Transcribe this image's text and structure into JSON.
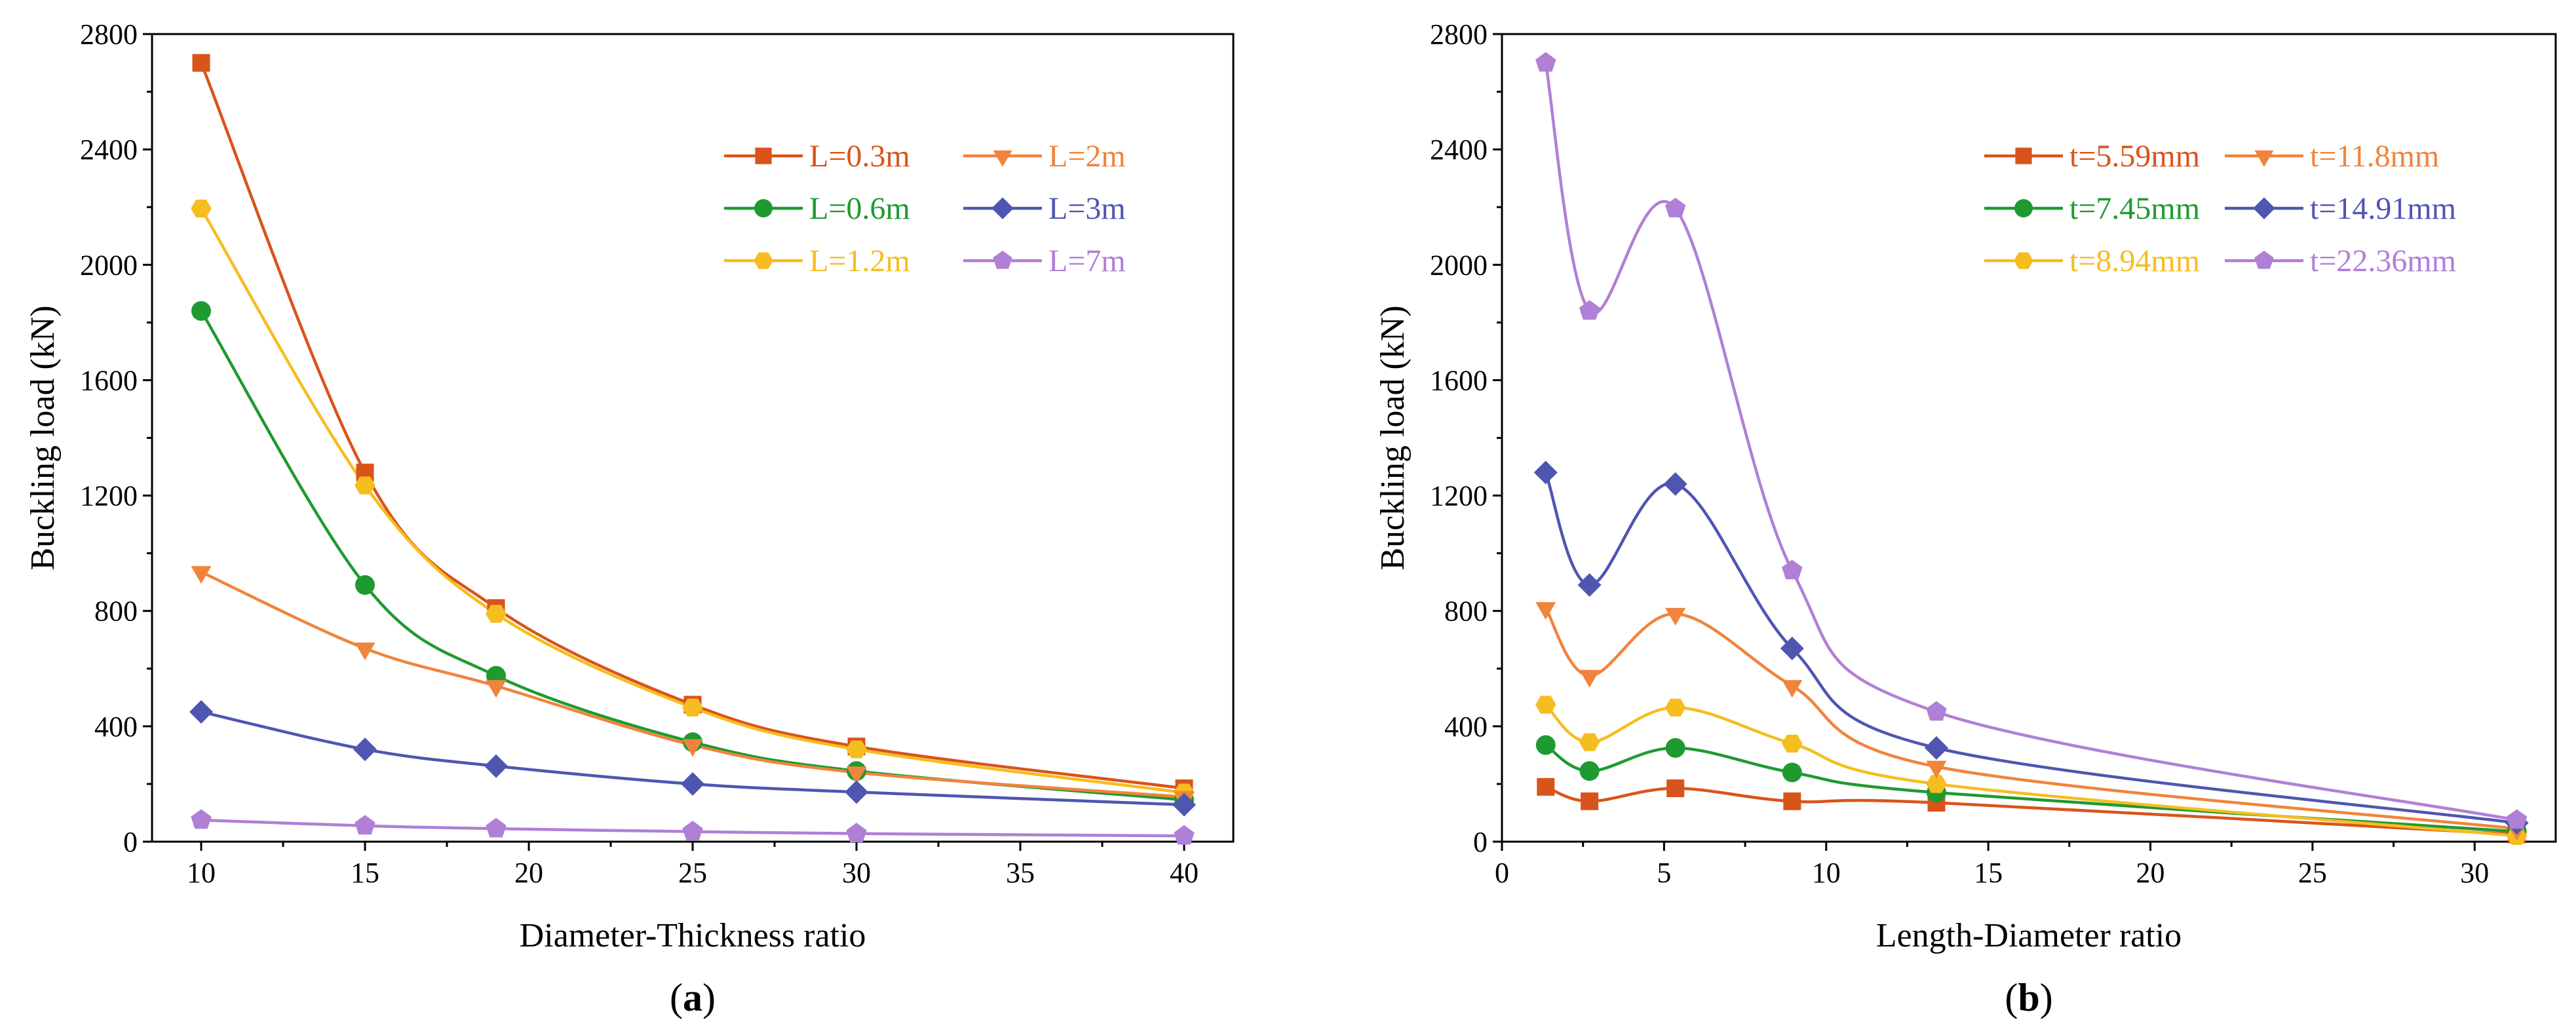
{
  "chart_data": [
    {
      "type": "line",
      "panel_label": "(a)",
      "xlabel": "Diameter-Thickness ratio",
      "ylabel": "Buckling load (kN)",
      "xlim": [
        8.5,
        41.5
      ],
      "ylim": [
        0,
        2800
      ],
      "xticks": [
        10,
        15,
        20,
        25,
        30,
        35,
        40
      ],
      "yticks": [
        0,
        400,
        800,
        1200,
        1600,
        2000,
        2400,
        2800
      ],
      "legend_position": "top-right",
      "legend_columns": 2,
      "series": [
        {
          "name": "L=0.3m",
          "color": "#d9541a",
          "marker": "square",
          "x": [
            10,
            15,
            19,
            25,
            30,
            40
          ],
          "y": [
            2700,
            1280,
            810,
            475,
            330,
            185
          ]
        },
        {
          "name": "L=0.6m",
          "color": "#1f9a31",
          "marker": "circle",
          "x": [
            10,
            15,
            19,
            25,
            30,
            40
          ],
          "y": [
            1840,
            890,
            575,
            345,
            245,
            145
          ]
        },
        {
          "name": "L=1.2m",
          "color": "#f6bd20",
          "marker": "hexagon",
          "x": [
            10,
            15,
            19,
            25,
            30,
            40
          ],
          "y": [
            2195,
            1235,
            790,
            465,
            320,
            170
          ]
        },
        {
          "name": "L=2m",
          "color": "#f0843c",
          "marker": "triangle-down",
          "x": [
            10,
            15,
            19,
            25,
            30,
            40
          ],
          "y": [
            935,
            670,
            540,
            335,
            240,
            155
          ]
        },
        {
          "name": "L=3m",
          "color": "#4f56b0",
          "marker": "diamond",
          "x": [
            10,
            15,
            19,
            25,
            30,
            40
          ],
          "y": [
            450,
            320,
            262,
            200,
            172,
            128
          ]
        },
        {
          "name": "L=7m",
          "color": "#b07fd6",
          "marker": "pentagon",
          "x": [
            10,
            15,
            19,
            25,
            30,
            40
          ],
          "y": [
            75,
            55,
            45,
            35,
            28,
            20
          ]
        }
      ]
    },
    {
      "type": "line",
      "panel_label": "(b)",
      "xlabel": "Length-Diameter ratio",
      "ylabel": "Buckling load (kN)",
      "xlim": [
        0,
        32.5
      ],
      "ylim": [
        0,
        2800
      ],
      "xticks": [
        0,
        5,
        10,
        15,
        20,
        25,
        30
      ],
      "yticks": [
        0,
        400,
        800,
        1200,
        1600,
        2000,
        2400,
        2800
      ],
      "legend_position": "top-right",
      "legend_columns": 2,
      "series": [
        {
          "name": "t=5.59mm",
          "color": "#d9541a",
          "marker": "square",
          "x": [
            1.35,
            2.7,
            5.35,
            8.95,
            13.4,
            31.3
          ],
          "y": [
            190,
            140,
            185,
            140,
            135,
            25
          ]
        },
        {
          "name": "t=7.45mm",
          "color": "#1f9a31",
          "marker": "circle",
          "x": [
            1.35,
            2.7,
            5.35,
            8.95,
            13.4,
            31.3
          ],
          "y": [
            335,
            245,
            325,
            240,
            170,
            35
          ]
        },
        {
          "name": "t=8.94mm",
          "color": "#f6bd20",
          "marker": "hexagon",
          "x": [
            1.35,
            2.7,
            5.35,
            8.95,
            13.4,
            31.3
          ],
          "y": [
            475,
            345,
            465,
            340,
            200,
            20
          ]
        },
        {
          "name": "t=11.8mm",
          "color": "#f0843c",
          "marker": "triangle-down",
          "x": [
            1.35,
            2.7,
            5.35,
            8.95,
            13.4,
            31.3
          ],
          "y": [
            810,
            575,
            790,
            540,
            260,
            45
          ]
        },
        {
          "name": "t=14.91mm",
          "color": "#4f56b0",
          "marker": "diamond",
          "x": [
            1.35,
            2.7,
            5.35,
            8.95,
            13.4,
            31.3
          ],
          "y": [
            1280,
            890,
            1240,
            670,
            325,
            65
          ]
        },
        {
          "name": "t=22.36mm",
          "color": "#b07fd6",
          "marker": "pentagon",
          "x": [
            1.35,
            2.7,
            5.35,
            8.95,
            13.4,
            31.3
          ],
          "y": [
            2700,
            1840,
            2195,
            940,
            450,
            75
          ]
        }
      ]
    }
  ]
}
